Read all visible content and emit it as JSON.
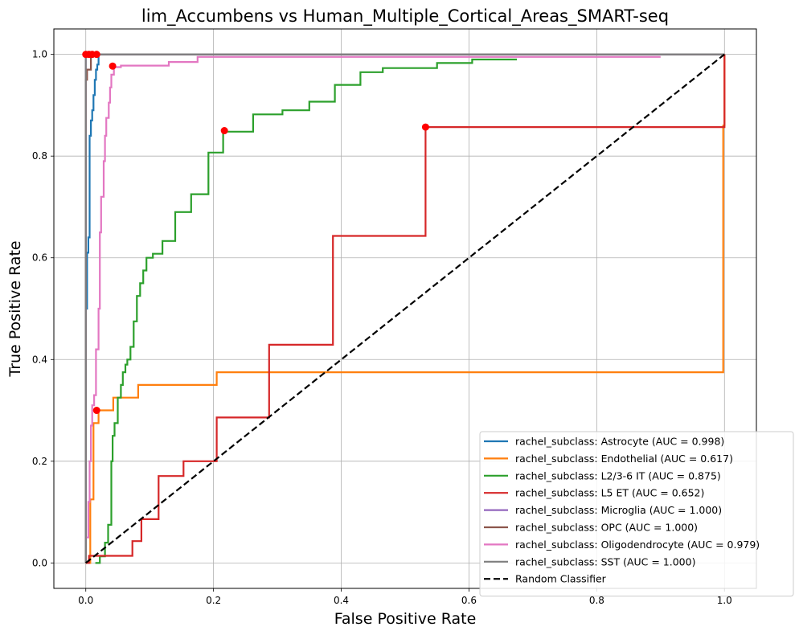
{
  "chart_data": {
    "type": "line",
    "title": "lim_Accumbens vs Human_Multiple_Cortical_Areas_SMART-seq",
    "xlabel": "False Positive Rate",
    "ylabel": "True Positive Rate",
    "xlim": [
      -0.05,
      1.05
    ],
    "ylim": [
      -0.05,
      1.05
    ],
    "xticks": [
      "0.0",
      "0.2",
      "0.4",
      "0.6",
      "0.8",
      "1.0"
    ],
    "yticks": [
      "0.0",
      "0.2",
      "0.4",
      "0.6",
      "0.8",
      "1.0"
    ],
    "grid": true,
    "legend_position": "lower right",
    "series": [
      {
        "name": "rachel_subclass: Astrocyte (AUC = 0.998)",
        "color": "#1f77b4",
        "points": [
          [
            0,
            0
          ],
          [
            0,
            0.5
          ],
          [
            0.002,
            0.5
          ],
          [
            0.002,
            0.61
          ],
          [
            0.004,
            0.61
          ],
          [
            0.004,
            0.64
          ],
          [
            0.006,
            0.64
          ],
          [
            0.006,
            0.84
          ],
          [
            0.008,
            0.84
          ],
          [
            0.008,
            0.87
          ],
          [
            0.01,
            0.87
          ],
          [
            0.01,
            0.89
          ],
          [
            0.012,
            0.89
          ],
          [
            0.012,
            0.92
          ],
          [
            0.014,
            0.92
          ],
          [
            0.014,
            0.95
          ],
          [
            0.016,
            0.95
          ],
          [
            0.016,
            0.97
          ],
          [
            0.018,
            0.97
          ],
          [
            0.018,
            0.98
          ],
          [
            0.02,
            0.98
          ],
          [
            0.02,
            1.0
          ],
          [
            1.0,
            1.0
          ]
        ],
        "marker": [
          0.017,
          1.0
        ]
      },
      {
        "name": "rachel_subclass: Endothelial (AUC = 0.617)",
        "color": "#ff7f0e",
        "points": [
          [
            0,
            0
          ],
          [
            0.007,
            0
          ],
          [
            0.007,
            0.125
          ],
          [
            0.012,
            0.125
          ],
          [
            0.012,
            0.275
          ],
          [
            0.02,
            0.275
          ],
          [
            0.02,
            0.3
          ],
          [
            0.043,
            0.3
          ],
          [
            0.043,
            0.325
          ],
          [
            0.082,
            0.325
          ],
          [
            0.082,
            0.35
          ],
          [
            0.205,
            0.35
          ],
          [
            0.205,
            0.375
          ],
          [
            0.998,
            0.375
          ],
          [
            0.998,
            0.86
          ],
          [
            1.0,
            0.86
          ],
          [
            1.0,
            1.0
          ]
        ],
        "marker": [
          0.017,
          0.3
        ]
      },
      {
        "name": "rachel_subclass: L2/3-6 IT (AUC = 0.875)",
        "color": "#2ca02c",
        "points": [
          [
            0.015,
            0
          ],
          [
            0.022,
            0
          ],
          [
            0.022,
            0.013
          ],
          [
            0.03,
            0.013
          ],
          [
            0.03,
            0.04
          ],
          [
            0.035,
            0.04
          ],
          [
            0.035,
            0.075
          ],
          [
            0.04,
            0.075
          ],
          [
            0.04,
            0.2
          ],
          [
            0.042,
            0.2
          ],
          [
            0.042,
            0.25
          ],
          [
            0.045,
            0.25
          ],
          [
            0.045,
            0.275
          ],
          [
            0.05,
            0.275
          ],
          [
            0.05,
            0.325
          ],
          [
            0.055,
            0.325
          ],
          [
            0.055,
            0.35
          ],
          [
            0.058,
            0.35
          ],
          [
            0.058,
            0.375
          ],
          [
            0.062,
            0.375
          ],
          [
            0.062,
            0.39
          ],
          [
            0.065,
            0.39
          ],
          [
            0.065,
            0.4
          ],
          [
            0.07,
            0.4
          ],
          [
            0.07,
            0.425
          ],
          [
            0.075,
            0.425
          ],
          [
            0.075,
            0.475
          ],
          [
            0.08,
            0.475
          ],
          [
            0.08,
            0.525
          ],
          [
            0.085,
            0.525
          ],
          [
            0.085,
            0.55
          ],
          [
            0.09,
            0.55
          ],
          [
            0.09,
            0.575
          ],
          [
            0.095,
            0.575
          ],
          [
            0.095,
            0.6
          ],
          [
            0.105,
            0.6
          ],
          [
            0.105,
            0.608
          ],
          [
            0.12,
            0.608
          ],
          [
            0.12,
            0.633
          ],
          [
            0.14,
            0.633
          ],
          [
            0.14,
            0.69
          ],
          [
            0.165,
            0.69
          ],
          [
            0.165,
            0.725
          ],
          [
            0.192,
            0.725
          ],
          [
            0.192,
            0.807
          ],
          [
            0.215,
            0.807
          ],
          [
            0.215,
            0.848
          ],
          [
            0.262,
            0.848
          ],
          [
            0.262,
            0.882
          ],
          [
            0.308,
            0.882
          ],
          [
            0.308,
            0.89
          ],
          [
            0.35,
            0.89
          ],
          [
            0.35,
            0.907
          ],
          [
            0.39,
            0.907
          ],
          [
            0.39,
            0.94
          ],
          [
            0.43,
            0.94
          ],
          [
            0.43,
            0.965
          ],
          [
            0.465,
            0.965
          ],
          [
            0.465,
            0.973
          ],
          [
            0.55,
            0.973
          ],
          [
            0.55,
            0.983
          ],
          [
            0.605,
            0.983
          ],
          [
            0.605,
            0.99
          ],
          [
            0.675,
            0.99
          ]
        ],
        "marker": [
          0.217,
          0.85
        ]
      },
      {
        "name": "rachel_subclass: L5 ET (AUC = 0.652)",
        "color": "#d62728",
        "points": [
          [
            0,
            0
          ],
          [
            0.005,
            0
          ],
          [
            0.005,
            0.014
          ],
          [
            0.073,
            0.014
          ],
          [
            0.073,
            0.043
          ],
          [
            0.087,
            0.043
          ],
          [
            0.087,
            0.086
          ],
          [
            0.114,
            0.086
          ],
          [
            0.114,
            0.171
          ],
          [
            0.153,
            0.171
          ],
          [
            0.153,
            0.2
          ],
          [
            0.205,
            0.2
          ],
          [
            0.205,
            0.286
          ],
          [
            0.287,
            0.286
          ],
          [
            0.287,
            0.429
          ],
          [
            0.387,
            0.429
          ],
          [
            0.387,
            0.643
          ],
          [
            0.532,
            0.643
          ],
          [
            0.532,
            0.857
          ],
          [
            1.0,
            0.857
          ],
          [
            1.0,
            1.0
          ]
        ],
        "marker": [
          0.532,
          0.857
        ]
      },
      {
        "name": "rachel_subclass: Microglia (AUC = 1.000)",
        "color": "#9467bd",
        "points": [
          [
            0,
            0
          ],
          [
            0,
            1.0
          ],
          [
            1.0,
            1.0
          ]
        ],
        "marker": [
          0.0,
          1.0
        ]
      },
      {
        "name": "rachel_subclass: OPC (AUC = 1.000)",
        "color": "#8c564b",
        "points": [
          [
            0,
            0
          ],
          [
            0,
            0.95
          ],
          [
            0.002,
            0.95
          ],
          [
            0.002,
            0.97
          ],
          [
            0.008,
            0.97
          ],
          [
            0.008,
            1.0
          ],
          [
            1.0,
            1.0
          ]
        ],
        "marker": [
          0.01,
          1.0
        ]
      },
      {
        "name": "rachel_subclass: Oligodendrocyte (AUC = 0.979)",
        "color": "#e377c2",
        "points": [
          [
            0,
            0.05
          ],
          [
            0.004,
            0.05
          ],
          [
            0.004,
            0.12
          ],
          [
            0.006,
            0.12
          ],
          [
            0.006,
            0.2
          ],
          [
            0.008,
            0.2
          ],
          [
            0.008,
            0.27
          ],
          [
            0.01,
            0.27
          ],
          [
            0.01,
            0.31
          ],
          [
            0.013,
            0.31
          ],
          [
            0.013,
            0.33
          ],
          [
            0.016,
            0.33
          ],
          [
            0.016,
            0.42
          ],
          [
            0.02,
            0.42
          ],
          [
            0.02,
            0.5
          ],
          [
            0.022,
            0.5
          ],
          [
            0.022,
            0.65
          ],
          [
            0.024,
            0.65
          ],
          [
            0.024,
            0.72
          ],
          [
            0.028,
            0.72
          ],
          [
            0.028,
            0.79
          ],
          [
            0.03,
            0.79
          ],
          [
            0.03,
            0.84
          ],
          [
            0.032,
            0.84
          ],
          [
            0.032,
            0.875
          ],
          [
            0.036,
            0.875
          ],
          [
            0.036,
            0.905
          ],
          [
            0.038,
            0.905
          ],
          [
            0.038,
            0.935
          ],
          [
            0.04,
            0.935
          ],
          [
            0.04,
            0.96
          ],
          [
            0.044,
            0.96
          ],
          [
            0.044,
            0.975
          ],
          [
            0.055,
            0.975
          ],
          [
            0.055,
            0.978
          ],
          [
            0.13,
            0.978
          ],
          [
            0.13,
            0.985
          ],
          [
            0.175,
            0.985
          ],
          [
            0.175,
            0.995
          ],
          [
            0.9,
            0.995
          ]
        ],
        "marker": [
          0.042,
          0.977
        ]
      },
      {
        "name": "rachel_subclass: SST (AUC = 1.000)",
        "color": "#7f7f7f",
        "points": [
          [
            0,
            0
          ],
          [
            0,
            1.0
          ],
          [
            1.0,
            1.0
          ]
        ],
        "marker": [
          0.005,
          1.0
        ]
      },
      {
        "name": "Random Classifier",
        "color": "#000000",
        "dashed": true,
        "points": [
          [
            0,
            0
          ],
          [
            1,
            1
          ]
        ]
      }
    ]
  }
}
